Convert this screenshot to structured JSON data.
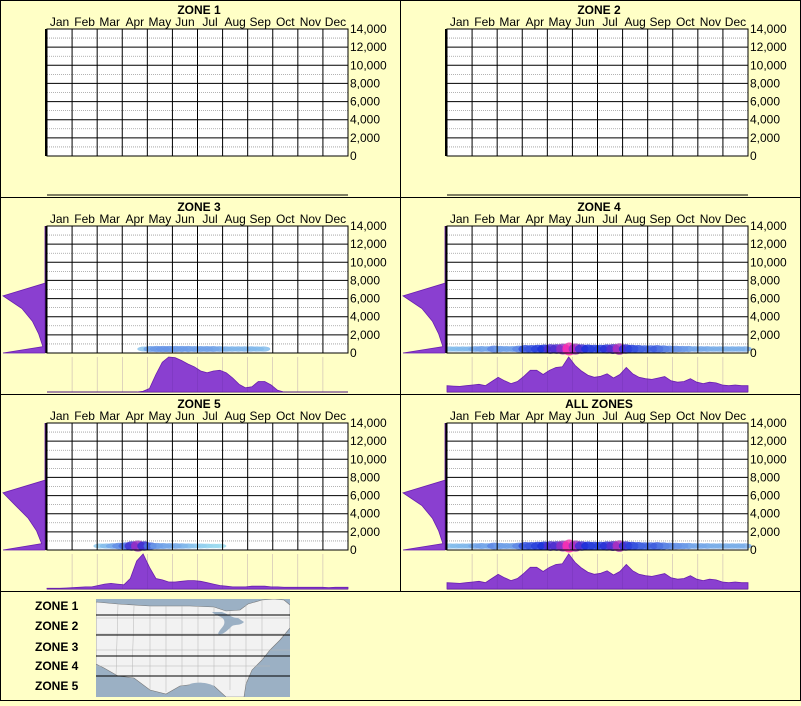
{
  "months": [
    "Jan",
    "Feb",
    "Mar",
    "Apr",
    "May",
    "Jun",
    "Jul",
    "Aug",
    "Sep",
    "Oct",
    "Nov",
    "Dec"
  ],
  "colors": {
    "background": "#ffffc6",
    "border": "#000000",
    "grid_minor": "#9a9a9a",
    "area_fill": "#8a3fd0",
    "area_stroke": "#6a1fb0",
    "heat_low": "#a8ecf2",
    "heat_mid": "#1a2fd8",
    "heat_high": "#ff2bb0"
  },
  "chart_data": [
    {
      "type": "heatmap",
      "title": "ZONE 1",
      "y_ticks": [
        "14,000",
        "12,000",
        "10,000",
        "8,000",
        "6,000",
        "4,000",
        "2,000",
        "0"
      ],
      "ylim": [
        0,
        14000
      ],
      "grid": true,
      "heat": [
        0,
        0,
        0,
        0,
        0,
        0,
        0,
        0,
        0,
        0,
        0,
        0,
        0,
        0,
        0,
        0,
        0,
        0,
        0,
        0,
        0,
        0,
        0,
        0,
        0,
        0,
        0,
        0,
        0,
        0,
        0,
        0,
        0,
        0,
        0,
        0,
        0,
        0,
        0,
        0,
        0,
        0,
        0,
        0,
        0,
        0,
        0,
        0
      ],
      "monthly_distribution": [
        0,
        0,
        0,
        0,
        0,
        0,
        0,
        0,
        0,
        0,
        0,
        0,
        0,
        0,
        0,
        0,
        0,
        0,
        0,
        0,
        0,
        0,
        0,
        0,
        0,
        0,
        0,
        0,
        0,
        0,
        0,
        0,
        0,
        0,
        0,
        0,
        0,
        0,
        0,
        0,
        0,
        0,
        0,
        0,
        0,
        0,
        0,
        0
      ],
      "elevation_distribution": [
        0,
        0,
        0,
        0,
        0,
        0,
        0,
        0,
        0,
        0
      ]
    },
    {
      "type": "heatmap",
      "title": "ZONE 2",
      "y_ticks": [
        "14,000",
        "12,000",
        "10,000",
        "8,000",
        "6,000",
        "4,000",
        "2,000",
        "0"
      ],
      "ylim": [
        0,
        14000
      ],
      "grid": true,
      "heat": [
        0,
        0,
        0,
        0,
        0,
        0,
        0,
        0,
        0,
        0,
        0,
        0,
        0,
        0,
        0,
        0,
        0,
        0,
        0,
        0,
        0,
        0,
        0,
        0,
        0,
        0,
        0,
        0,
        0,
        0,
        0,
        0,
        0,
        0,
        0,
        0,
        0,
        0,
        0,
        0,
        0,
        0,
        0,
        0,
        0,
        0,
        0,
        0
      ],
      "monthly_distribution": [
        0,
        0,
        0,
        0,
        0,
        0,
        0,
        0,
        0,
        0,
        0,
        0,
        0,
        0,
        0,
        0,
        0,
        0,
        0,
        0,
        0,
        0,
        0,
        0,
        0,
        0,
        0,
        0,
        0,
        0,
        0,
        0,
        0,
        0,
        0,
        0,
        0,
        0,
        0,
        0,
        0,
        0,
        0,
        0,
        0,
        0,
        0,
        0
      ],
      "elevation_distribution": [
        0,
        0,
        0,
        0,
        0,
        0,
        0,
        0,
        0,
        0
      ]
    },
    {
      "type": "heatmap",
      "title": "ZONE 3",
      "y_ticks": [
        "14,000",
        "12,000",
        "10,000",
        "8,000",
        "6,000",
        "4,000",
        "2,000",
        "0"
      ],
      "ylim": [
        0,
        14000
      ],
      "grid": true,
      "heat": [
        0,
        0,
        0,
        0,
        0,
        0,
        0,
        0,
        0,
        0,
        0,
        0,
        0,
        0,
        0,
        0.12,
        0.22,
        0.25,
        0.26,
        0.26,
        0.25,
        0.24,
        0.24,
        0.22,
        0.22,
        0.22,
        0.22,
        0.2,
        0.18,
        0.16,
        0.16,
        0.16,
        0.16,
        0.15,
        0.14,
        0,
        0,
        0,
        0,
        0,
        0,
        0,
        0,
        0,
        0,
        0,
        0,
        0
      ],
      "monthly_distribution": [
        0,
        0,
        0,
        0,
        0,
        0,
        0,
        0,
        0,
        0,
        0,
        0,
        0,
        0,
        0,
        0.02,
        0.1,
        0.5,
        0.85,
        1.0,
        0.98,
        0.9,
        0.8,
        0.72,
        0.6,
        0.55,
        0.6,
        0.62,
        0.55,
        0.4,
        0.22,
        0.12,
        0.15,
        0.3,
        0.3,
        0.2,
        0.05,
        0,
        0,
        0,
        0,
        0,
        0,
        0,
        0,
        0,
        0,
        0
      ],
      "elevation_distribution": [
        0.05,
        0.15,
        0.3,
        0.55,
        1.0,
        0,
        0,
        0,
        0,
        0
      ]
    },
    {
      "type": "heatmap",
      "title": "ZONE 4",
      "y_ticks": [
        "14,000",
        "12,000",
        "10,000",
        "8,000",
        "6,000",
        "4,000",
        "2,000",
        "0"
      ],
      "ylim": [
        0,
        14000
      ],
      "grid": true,
      "heat": [
        0.14,
        0.14,
        0.15,
        0.15,
        0.2,
        0.22,
        0.2,
        0.3,
        0.24,
        0.22,
        0.22,
        0.3,
        0.45,
        0.45,
        0.5,
        0.55,
        0.65,
        0.65,
        0.78,
        1.0,
        0.8,
        0.62,
        0.55,
        0.5,
        0.5,
        0.58,
        0.66,
        0.84,
        0.6,
        0.5,
        0.45,
        0.4,
        0.4,
        0.42,
        0.35,
        0.3,
        0.28,
        0.26,
        0.24,
        0.2,
        0.2,
        0.2,
        0.18,
        0.18,
        0.18,
        0.18,
        0.18,
        0.18
      ],
      "monthly_distribution": [
        0.18,
        0.17,
        0.16,
        0.18,
        0.2,
        0.22,
        0.18,
        0.3,
        0.42,
        0.32,
        0.24,
        0.3,
        0.45,
        0.62,
        0.62,
        0.5,
        0.62,
        0.7,
        0.72,
        1.0,
        0.76,
        0.6,
        0.48,
        0.42,
        0.45,
        0.52,
        0.4,
        0.5,
        0.7,
        0.52,
        0.42,
        0.38,
        0.36,
        0.4,
        0.44,
        0.32,
        0.28,
        0.3,
        0.38,
        0.28,
        0.24,
        0.28,
        0.26,
        0.2,
        0.18,
        0.2,
        0.18,
        0.18
      ],
      "elevation_distribution": [
        0.05,
        0.15,
        0.3,
        0.55,
        1.0,
        0,
        0,
        0,
        0,
        0
      ]
    },
    {
      "type": "heatmap",
      "title": "ZONE 5",
      "y_ticks": [
        "14,000",
        "12,000",
        "10,000",
        "8,000",
        "6,000",
        "4,000",
        "2,000",
        "0"
      ],
      "ylim": [
        0,
        14000
      ],
      "grid": true,
      "heat": [
        0,
        0,
        0,
        0,
        0,
        0,
        0,
        0,
        0.1,
        0.14,
        0.2,
        0.28,
        0.36,
        0.62,
        0.8,
        0.6,
        0.36,
        0.25,
        0.22,
        0.2,
        0.2,
        0.18,
        0.15,
        0.12,
        0.1,
        0.08,
        0.06,
        0.05,
        0,
        0,
        0,
        0,
        0,
        0,
        0,
        0,
        0,
        0,
        0,
        0,
        0,
        0,
        0,
        0,
        0,
        0,
        0,
        0
      ],
      "monthly_distribution": [
        0.02,
        0.02,
        0.02,
        0.03,
        0.04,
        0.05,
        0.06,
        0.06,
        0.1,
        0.14,
        0.16,
        0.14,
        0.12,
        0.3,
        0.8,
        1.0,
        0.62,
        0.3,
        0.26,
        0.2,
        0.2,
        0.22,
        0.24,
        0.24,
        0.22,
        0.18,
        0.14,
        0.1,
        0.08,
        0.06,
        0.06,
        0.06,
        0.08,
        0.08,
        0.08,
        0.06,
        0.06,
        0.05,
        0.05,
        0.05,
        0.05,
        0.05,
        0.05,
        0.05,
        0.04,
        0.05,
        0.05,
        0.05
      ],
      "elevation_distribution": [
        0.08,
        0.2,
        0.4,
        0.7,
        1.0,
        0,
        0,
        0,
        0,
        0
      ]
    },
    {
      "type": "heatmap",
      "title": "ALL ZONES",
      "y_ticks": [
        "14,000",
        "12,000",
        "10,000",
        "8,000",
        "6,000",
        "4,000",
        "2,000",
        "0"
      ],
      "ylim": [
        0,
        14000
      ],
      "grid": true,
      "heat": [
        0.14,
        0.14,
        0.15,
        0.15,
        0.2,
        0.22,
        0.2,
        0.3,
        0.24,
        0.22,
        0.22,
        0.3,
        0.45,
        0.45,
        0.5,
        0.55,
        0.65,
        0.65,
        0.78,
        1.0,
        0.8,
        0.62,
        0.55,
        0.5,
        0.5,
        0.58,
        0.66,
        0.84,
        0.6,
        0.5,
        0.45,
        0.4,
        0.4,
        0.42,
        0.35,
        0.3,
        0.28,
        0.26,
        0.24,
        0.2,
        0.2,
        0.2,
        0.18,
        0.18,
        0.18,
        0.18,
        0.18,
        0.18
      ],
      "monthly_distribution": [
        0.18,
        0.17,
        0.16,
        0.18,
        0.2,
        0.22,
        0.18,
        0.3,
        0.42,
        0.32,
        0.24,
        0.3,
        0.45,
        0.62,
        0.62,
        0.5,
        0.62,
        0.7,
        0.72,
        1.0,
        0.76,
        0.6,
        0.48,
        0.42,
        0.45,
        0.52,
        0.4,
        0.5,
        0.7,
        0.52,
        0.42,
        0.38,
        0.36,
        0.4,
        0.44,
        0.32,
        0.28,
        0.3,
        0.38,
        0.28,
        0.24,
        0.28,
        0.26,
        0.2,
        0.18,
        0.2,
        0.18,
        0.18
      ],
      "elevation_distribution": [
        0.05,
        0.15,
        0.3,
        0.55,
        1.0,
        0,
        0,
        0,
        0,
        0
      ]
    }
  ],
  "legend": {
    "zones": [
      "ZONE 1",
      "ZONE 2",
      "ZONE 3",
      "ZONE 4",
      "ZONE 5"
    ]
  },
  "map": {
    "icon": "us-map-icon",
    "water_color": "#9bb0c4",
    "land_color": "#f2f2f2"
  }
}
